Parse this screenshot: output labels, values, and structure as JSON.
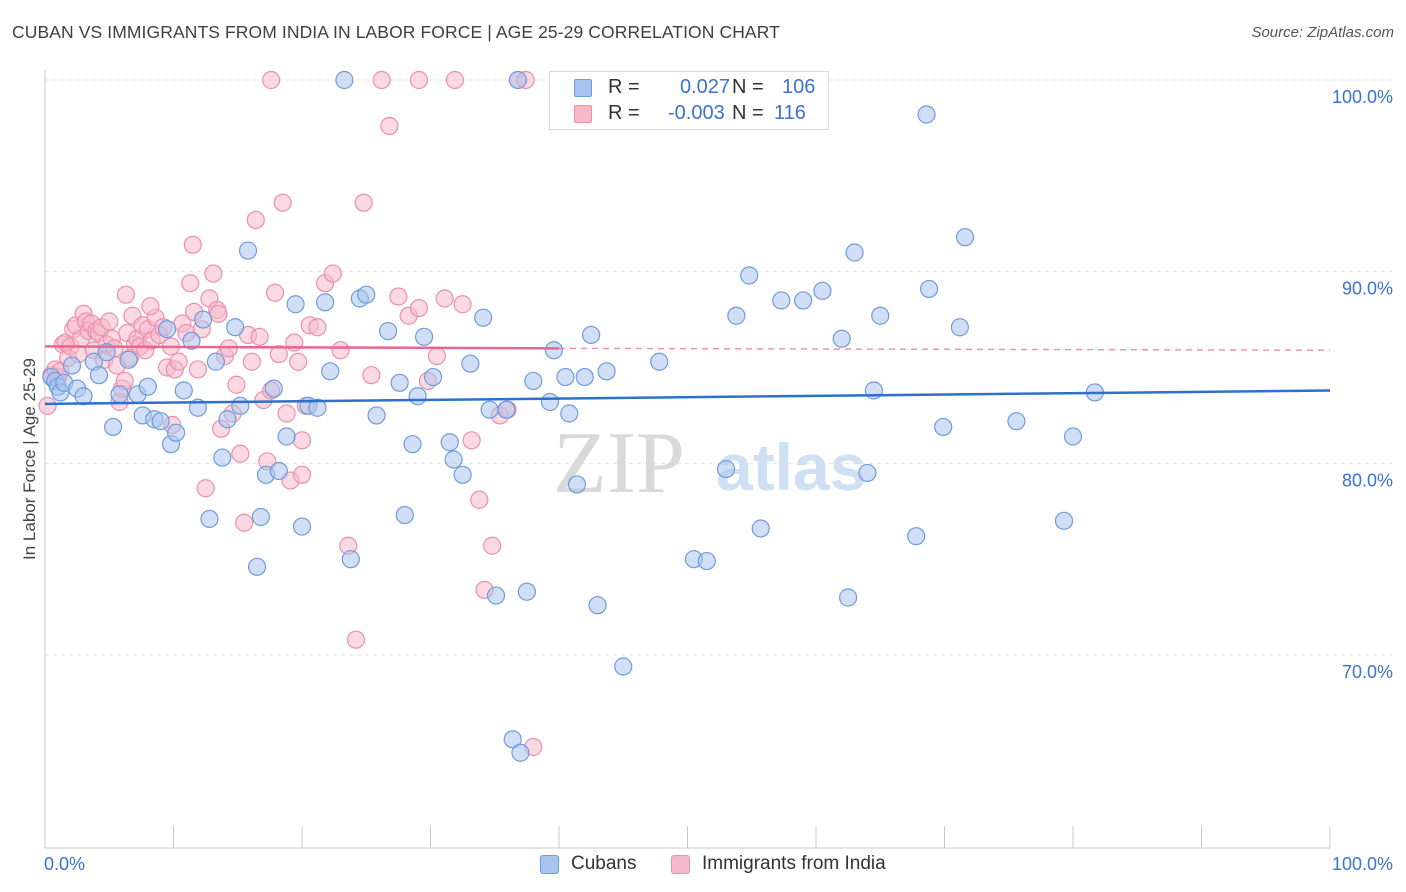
{
  "title": "CUBAN VS IMMIGRANTS FROM INDIA IN LABOR FORCE | AGE 25-29 CORRELATION CHART",
  "source": "Source: ZipAtlas.com",
  "watermark": {
    "zip": "ZIP",
    "atlas": "atlas"
  },
  "legend_box": {
    "rows": [
      {
        "r_label": "R = ",
        "r_value": "0.027",
        "n_label": "N = ",
        "n_value": "106"
      },
      {
        "r_label": "R = ",
        "r_value": "-0.003",
        "n_label": "N = ",
        "n_value": "116"
      }
    ]
  },
  "bottom_legend": {
    "cubans": "Cubans",
    "india": "Immigrants from India"
  },
  "colors": {
    "cubans_fill": "#a9c4ee",
    "cubans_stroke": "#6f9bdc",
    "cubans_line": "#2f6fce",
    "india_fill": "#f6b9cc",
    "india_stroke": "#ec8fac",
    "india_line": "#e8668e",
    "axis_label": "#3a72d2",
    "grid": "#e2e2e2"
  },
  "chart_data": {
    "type": "scatter",
    "title": "CUBAN VS IMMIGRANTS FROM INDIA IN LABOR FORCE | AGE 25-29 CORRELATION CHART",
    "xlabel": "",
    "ylabel": "In Labor Force | Age 25-29",
    "xlim": [
      0,
      100
    ],
    "ylim": [
      60,
      101.5
    ],
    "x_tick_labels": [
      "0.0%",
      "100.0%"
    ],
    "y_ticks": [
      70,
      80,
      90,
      100
    ],
    "y_tick_labels": [
      "70.0%",
      "80.0%",
      "90.0%",
      "100.0%"
    ],
    "grid": true,
    "series": [
      {
        "name": "Cubans",
        "R": 0.027,
        "N": 106,
        "trend": {
          "x": [
            0,
            100
          ],
          "y": [
            83.1,
            83.8
          ]
        },
        "points": [
          [
            0.5,
            84.5
          ],
          [
            0.8,
            84.3
          ],
          [
            1.0,
            84.0
          ],
          [
            1.2,
            83.7
          ],
          [
            1.5,
            84.2
          ],
          [
            2.1,
            85.1
          ],
          [
            2.5,
            83.9
          ],
          [
            3.0,
            83.5
          ],
          [
            3.8,
            85.3
          ],
          [
            4.2,
            84.6
          ],
          [
            4.8,
            85.8
          ],
          [
            5.3,
            81.9
          ],
          [
            5.8,
            83.6
          ],
          [
            6.5,
            85.4
          ],
          [
            7.2,
            83.6
          ],
          [
            7.6,
            82.5
          ],
          [
            8.0,
            84.0
          ],
          [
            8.5,
            82.3
          ],
          [
            9.0,
            82.2
          ],
          [
            9.5,
            87.0
          ],
          [
            9.8,
            81.0
          ],
          [
            10.2,
            81.6
          ],
          [
            10.8,
            83.8
          ],
          [
            11.4,
            86.4
          ],
          [
            11.9,
            82.9
          ],
          [
            12.3,
            87.5
          ],
          [
            12.8,
            77.1
          ],
          [
            13.3,
            85.3
          ],
          [
            13.8,
            80.3
          ],
          [
            14.2,
            82.3
          ],
          [
            14.8,
            87.1
          ],
          [
            15.2,
            83.0
          ],
          [
            15.8,
            91.1
          ],
          [
            16.5,
            74.6
          ],
          [
            16.8,
            77.2
          ],
          [
            17.2,
            79.4
          ],
          [
            17.8,
            83.9
          ],
          [
            18.2,
            79.6
          ],
          [
            18.8,
            81.4
          ],
          [
            19.5,
            88.3
          ],
          [
            20.0,
            76.7
          ],
          [
            20.5,
            83.0
          ],
          [
            21.2,
            82.9
          ],
          [
            21.8,
            88.4
          ],
          [
            22.2,
            84.8
          ],
          [
            23.3,
            100.0
          ],
          [
            23.8,
            75.0
          ],
          [
            24.5,
            88.6
          ],
          [
            25.0,
            88.8
          ],
          [
            25.8,
            82.5
          ],
          [
            26.7,
            86.9
          ],
          [
            27.6,
            84.2
          ],
          [
            28.0,
            77.3
          ],
          [
            28.6,
            81.0
          ],
          [
            29.0,
            83.5
          ],
          [
            29.5,
            86.6
          ],
          [
            30.2,
            84.5
          ],
          [
            31.5,
            81.1
          ],
          [
            31.8,
            80.2
          ],
          [
            32.5,
            79.4
          ],
          [
            33.1,
            85.2
          ],
          [
            34.1,
            87.6
          ],
          [
            34.6,
            82.8
          ],
          [
            35.1,
            73.1
          ],
          [
            35.9,
            82.8
          ],
          [
            36.4,
            65.6
          ],
          [
            36.8,
            100.0
          ],
          [
            37.5,
            73.3
          ],
          [
            38.0,
            84.3
          ],
          [
            39.3,
            83.2
          ],
          [
            39.6,
            85.9
          ],
          [
            40.5,
            84.5
          ],
          [
            40.8,
            82.6
          ],
          [
            41.4,
            78.9
          ],
          [
            42.0,
            84.5
          ],
          [
            42.5,
            86.7
          ],
          [
            43.0,
            72.6
          ],
          [
            43.7,
            84.8
          ],
          [
            45.0,
            69.4
          ],
          [
            47.8,
            85.3
          ],
          [
            50.5,
            75.0
          ],
          [
            51.5,
            74.9
          ],
          [
            53.0,
            79.7
          ],
          [
            53.8,
            87.7
          ],
          [
            54.8,
            89.8
          ],
          [
            55.7,
            76.6
          ],
          [
            57.3,
            88.5
          ],
          [
            59.0,
            88.5
          ],
          [
            60.5,
            89.0
          ],
          [
            62.0,
            86.5
          ],
          [
            62.5,
            73.0
          ],
          [
            63.0,
            91.0
          ],
          [
            64.0,
            79.5
          ],
          [
            64.5,
            83.8
          ],
          [
            65.0,
            87.7
          ],
          [
            67.8,
            76.2
          ],
          [
            68.8,
            89.1
          ],
          [
            68.6,
            98.2
          ],
          [
            69.9,
            81.9
          ],
          [
            71.2,
            87.1
          ],
          [
            71.6,
            91.8
          ],
          [
            75.6,
            82.2
          ],
          [
            79.3,
            77.0
          ],
          [
            80.0,
            81.4
          ],
          [
            81.7,
            83.7
          ],
          [
            37.0,
            64.9
          ]
        ]
      },
      {
        "name": "Immigrants from India",
        "R": -0.003,
        "N": 116,
        "trend": {
          "x": [
            0,
            40
          ],
          "y": [
            86.1,
            86.0
          ]
        },
        "trend_dashed": {
          "x": [
            40,
            100
          ],
          "y": [
            86.0,
            85.9
          ]
        },
        "points": [
          [
            0.2,
            83.0
          ],
          [
            0.5,
            84.6
          ],
          [
            0.8,
            84.9
          ],
          [
            1.0,
            84.5
          ],
          [
            1.2,
            84.8
          ],
          [
            1.4,
            86.2
          ],
          [
            1.6,
            86.3
          ],
          [
            1.8,
            85.5
          ],
          [
            2.0,
            86.1
          ],
          [
            2.2,
            87.0
          ],
          [
            2.4,
            87.2
          ],
          [
            2.6,
            85.7
          ],
          [
            2.8,
            86.5
          ],
          [
            3.0,
            87.8
          ],
          [
            3.2,
            87.4
          ],
          [
            3.4,
            86.9
          ],
          [
            3.6,
            87.3
          ],
          [
            3.8,
            85.9
          ],
          [
            4.0,
            86.9
          ],
          [
            4.2,
            86.8
          ],
          [
            4.4,
            87.1
          ],
          [
            4.6,
            85.4
          ],
          [
            4.8,
            86.2
          ],
          [
            5.0,
            87.4
          ],
          [
            5.2,
            86.5
          ],
          [
            5.4,
            86.0
          ],
          [
            5.6,
            85.1
          ],
          [
            5.8,
            83.2
          ],
          [
            6.0,
            83.9
          ],
          [
            6.2,
            84.3
          ],
          [
            6.4,
            86.8
          ],
          [
            6.6,
            85.5
          ],
          [
            6.8,
            87.7
          ],
          [
            7.0,
            86.2
          ],
          [
            7.2,
            86.5
          ],
          [
            7.4,
            86.1
          ],
          [
            7.6,
            87.2
          ],
          [
            7.8,
            85.9
          ],
          [
            8.0,
            87.0
          ],
          [
            8.3,
            86.4
          ],
          [
            8.6,
            87.6
          ],
          [
            8.9,
            86.7
          ],
          [
            9.2,
            87.1
          ],
          [
            9.5,
            85.0
          ],
          [
            9.8,
            86.1
          ],
          [
            10.1,
            84.9
          ],
          [
            10.4,
            85.3
          ],
          [
            10.7,
            87.3
          ],
          [
            11.0,
            86.8
          ],
          [
            11.3,
            89.4
          ],
          [
            11.6,
            87.9
          ],
          [
            11.9,
            84.9
          ],
          [
            12.2,
            87.0
          ],
          [
            12.5,
            78.7
          ],
          [
            12.8,
            88.6
          ],
          [
            13.1,
            89.9
          ],
          [
            13.4,
            88.0
          ],
          [
            13.7,
            81.8
          ],
          [
            14.0,
            85.6
          ],
          [
            14.3,
            86.0
          ],
          [
            14.6,
            82.6
          ],
          [
            14.9,
            84.1
          ],
          [
            15.2,
            80.5
          ],
          [
            15.5,
            76.9
          ],
          [
            15.8,
            86.7
          ],
          [
            16.1,
            85.3
          ],
          [
            16.4,
            92.7
          ],
          [
            16.7,
            86.6
          ],
          [
            17.0,
            83.3
          ],
          [
            17.3,
            80.1
          ],
          [
            17.6,
            83.8
          ],
          [
            17.9,
            88.9
          ],
          [
            18.2,
            85.7
          ],
          [
            18.5,
            93.6
          ],
          [
            18.8,
            82.6
          ],
          [
            19.1,
            79.1
          ],
          [
            19.4,
            86.3
          ],
          [
            19.7,
            85.3
          ],
          [
            20.0,
            81.2
          ],
          [
            20.3,
            83.0
          ],
          [
            20.6,
            87.2
          ],
          [
            21.2,
            87.1
          ],
          [
            21.8,
            89.4
          ],
          [
            22.4,
            89.9
          ],
          [
            23.0,
            85.9
          ],
          [
            23.6,
            75.7
          ],
          [
            24.2,
            70.8
          ],
          [
            24.8,
            93.6
          ],
          [
            25.4,
            84.6
          ],
          [
            26.2,
            100.0
          ],
          [
            26.8,
            97.6
          ],
          [
            27.5,
            88.7
          ],
          [
            28.3,
            87.7
          ],
          [
            29.1,
            88.1
          ],
          [
            29.8,
            84.3
          ],
          [
            30.5,
            85.6
          ],
          [
            31.1,
            88.6
          ],
          [
            31.9,
            100.0
          ],
          [
            32.5,
            88.3
          ],
          [
            33.2,
            81.2
          ],
          [
            33.8,
            78.1
          ],
          [
            34.2,
            73.4
          ],
          [
            34.8,
            75.7
          ],
          [
            35.4,
            82.5
          ],
          [
            36.0,
            82.8
          ],
          [
            36.8,
            100.0
          ],
          [
            37.4,
            100.0
          ],
          [
            38.0,
            65.2
          ],
          [
            17.6,
            100.0
          ],
          [
            29.1,
            100.0
          ],
          [
            20.0,
            79.4
          ],
          [
            13.5,
            87.8
          ],
          [
            9.9,
            82.0
          ],
          [
            11.5,
            91.4
          ],
          [
            8.2,
            88.2
          ],
          [
            6.3,
            88.8
          ]
        ]
      }
    ]
  }
}
